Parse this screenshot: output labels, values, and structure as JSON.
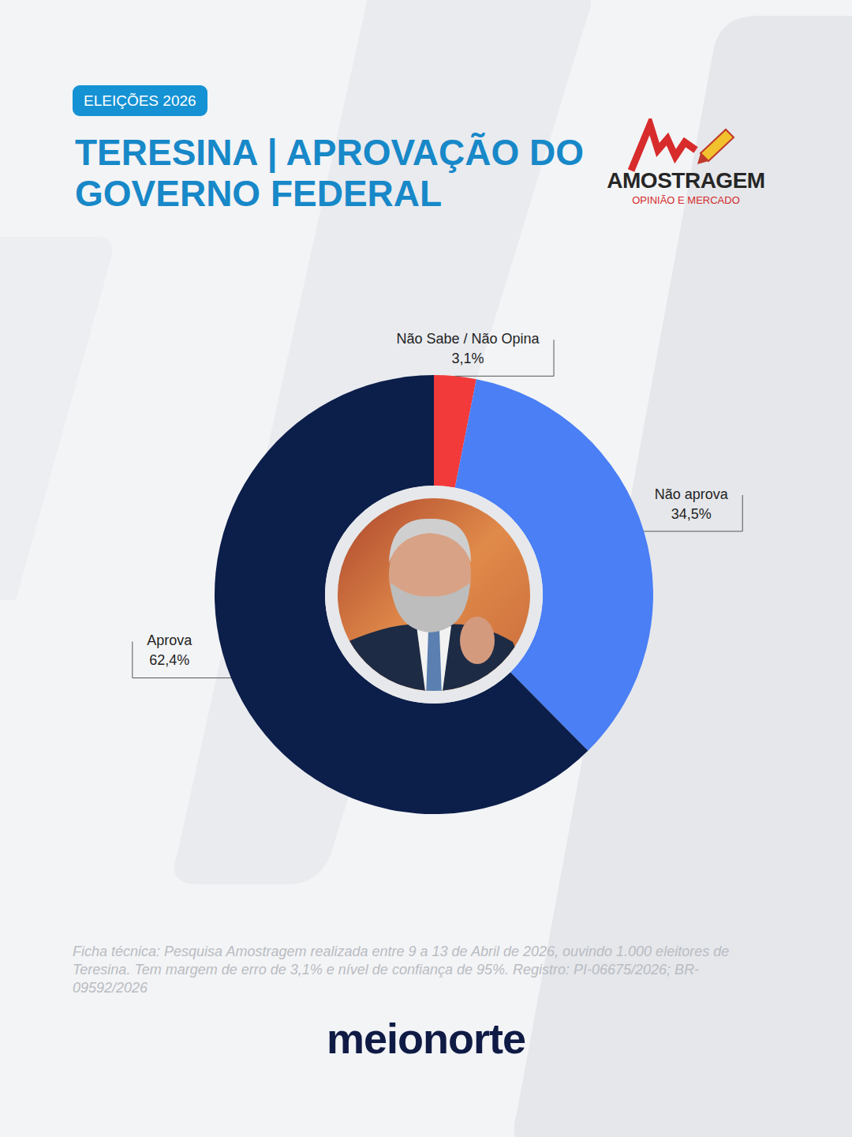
{
  "header": {
    "badge": "ELEIÇÕES 2026",
    "logo": {
      "name": "AMOSTRAGEM",
      "tagline": "OPINIÃO E MERCADO"
    }
  },
  "chart_data": {
    "type": "donut",
    "title": "TERESINA | APROVAÇÃO DO GOVERNO FEDERAL",
    "categories": [
      "Não Sabe / Não Opina",
      "Não aprova",
      "Aprova"
    ],
    "values": [
      3.1,
      34.5,
      62.4
    ],
    "value_labels": [
      "3,1%",
      "34,5%",
      "62,4%"
    ],
    "colors": [
      "#f23a3a",
      "#4a7ff5",
      "#0c1e4a"
    ],
    "data_labels": true
  },
  "footer": {
    "note": "Ficha técnica: Pesquisa Amostragem realizada entre 9 a 13 de Abril de 2026, ouvindo 1.000 eleitores de Teresina. Tem margem de erro de 3,1% e nível de confiança de 95%. Registro: PI-06675/2026; BR-09592/2026",
    "brand": "meionorte"
  }
}
